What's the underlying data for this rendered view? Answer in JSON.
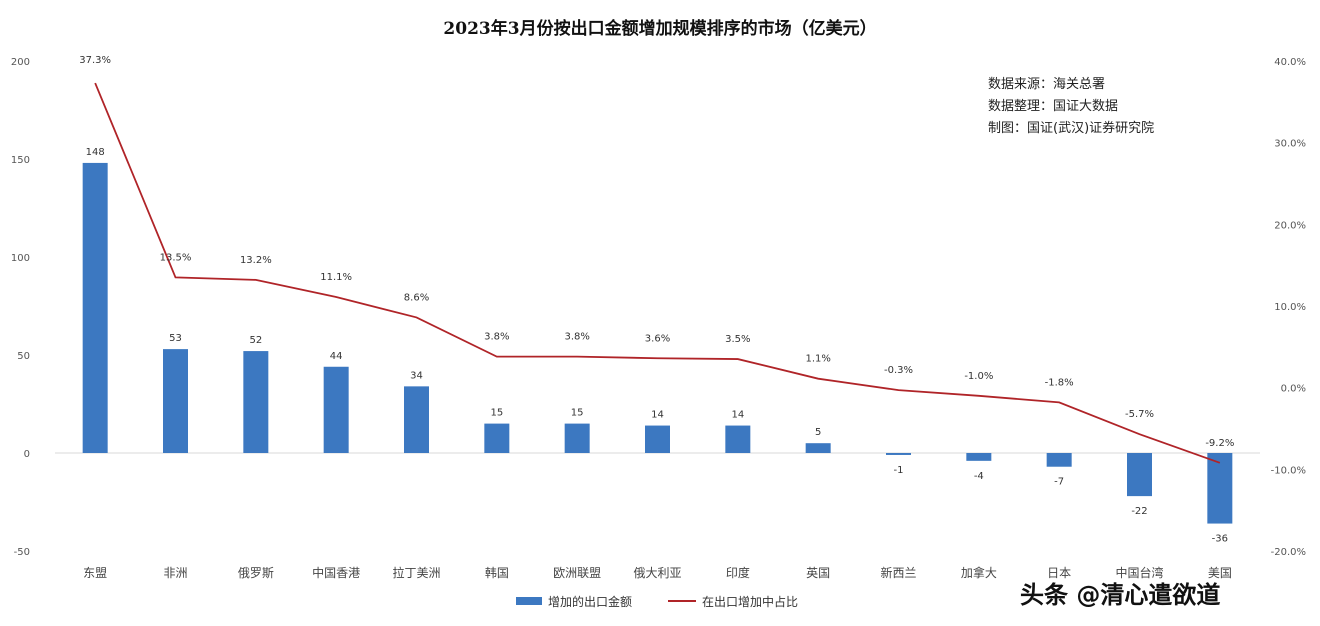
{
  "chart_data": {
    "type": "bar+line",
    "title": "2023年3月份按出口金额增加规模排序的市场（亿美元）",
    "categories": [
      "东盟",
      "非洲",
      "俄罗斯",
      "中国香港",
      "拉丁美洲",
      "韩国",
      "欧洲联盟",
      "俄大利亚",
      "印度",
      "英国",
      "新西兰",
      "加拿大",
      "日本",
      "中国台湾",
      "美国"
    ],
    "series": [
      {
        "name": "增加的出口金额",
        "type": "bar",
        "axis": "left",
        "color": "#3c78c1",
        "values": [
          148,
          53,
          52,
          44,
          34,
          15,
          15,
          14,
          14,
          5,
          -1,
          -4,
          -7,
          -22,
          -36
        ],
        "labels": [
          "148",
          "53",
          "52",
          "44",
          "34",
          "15",
          "15",
          "14",
          "14",
          "5",
          "-1",
          "-4",
          "-7",
          "-22",
          "-36"
        ]
      },
      {
        "name": "在出口增加中占比",
        "type": "line",
        "axis": "right",
        "color": "#b02428",
        "values": [
          37.3,
          13.5,
          13.2,
          11.1,
          8.6,
          3.8,
          3.8,
          3.6,
          3.5,
          1.1,
          -0.3,
          -1.0,
          -1.8,
          -5.7,
          -9.2
        ],
        "labels": [
          "37.3%",
          "13.5%",
          "13.2%",
          "11.1%",
          "8.6%",
          "3.8%",
          "3.8%",
          "3.6%",
          "3.5%",
          "1.1%",
          "-0.3%",
          "-1.0%",
          "-1.8%",
          "-5.7%",
          "-9.2%"
        ]
      }
    ],
    "ylim_left": [
      -50,
      200
    ],
    "yticks_left": [
      "200",
      "150",
      "100",
      "50",
      "0",
      "-50"
    ],
    "ylim_right": [
      -20,
      40
    ],
    "yticks_right": [
      "40.0%",
      "30.0%",
      "20.0%",
      "10.0%",
      "0.0%",
      "-10.0%",
      "-20.0%"
    ],
    "grid": false,
    "legend_position": "bottom"
  },
  "source_note": [
    "数据来源：海关总署",
    "数据整理：国证大数据",
    "制图：国证(武汉)证券研究院"
  ],
  "watermark": "头条 @清心遣欲道"
}
